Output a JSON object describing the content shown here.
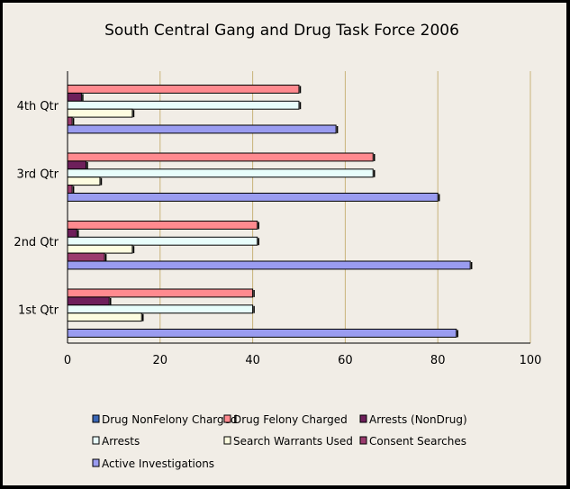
{
  "chart_data": {
    "type": "bar",
    "orientation": "horizontal",
    "title": "South Central Gang and Drug Task Force 2006",
    "xlabel": "",
    "ylabel": "",
    "xlim": [
      0,
      100
    ],
    "x_ticks": [
      0,
      20,
      40,
      60,
      80,
      100
    ],
    "gridlines": "vertical",
    "legend_position": "bottom",
    "categories": [
      "1st Qtr",
      "2nd Qtr",
      "3rd Qtr",
      "4th Qtr"
    ],
    "series": [
      {
        "name": "Drug NonFelony Charged",
        "color": "#3a66b5",
        "values": [
          0,
          0,
          0,
          0
        ]
      },
      {
        "name": "Drug Felony Charged",
        "color": "#ff8a8f",
        "values": [
          40,
          41,
          66,
          50
        ]
      },
      {
        "name": "Arrests (NonDrug)",
        "color": "#6e1f5b",
        "values": [
          9,
          2,
          4,
          3
        ]
      },
      {
        "name": "Arrests",
        "color": "#e8fdfb",
        "values": [
          40,
          41,
          66,
          50
        ]
      },
      {
        "name": "Search Warrants Used",
        "color": "#fdfce0",
        "values": [
          16,
          14,
          7,
          14
        ]
      },
      {
        "name": "Consent Searches",
        "color": "#9b3b6e",
        "values": [
          0,
          8,
          1,
          1
        ]
      },
      {
        "name": "Active Investigations",
        "color": "#9a9cf0",
        "values": [
          84,
          87,
          80,
          58
        ]
      }
    ]
  }
}
